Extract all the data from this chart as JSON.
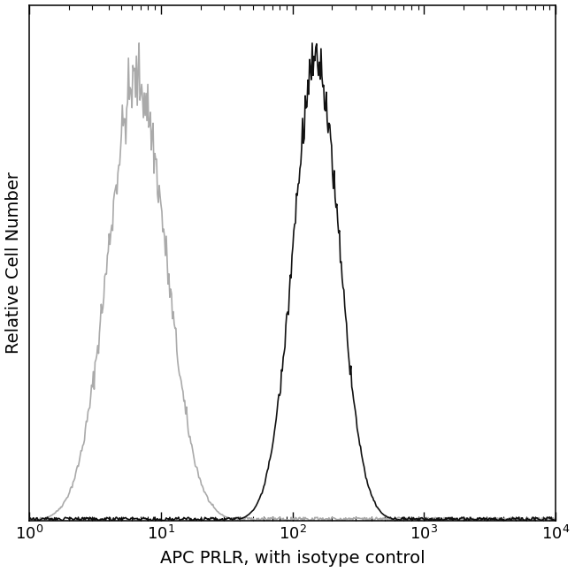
{
  "xlabel": "APC PRLR, with isotype control",
  "ylabel": "Relative Cell Number",
  "xlim_log": [
    1,
    10000
  ],
  "ylim": [
    0,
    1.08
  ],
  "background_color": "#ffffff",
  "isotype_peak_log": 0.82,
  "isotype_sigma_log": 0.22,
  "antibody_peak_log": 2.18,
  "antibody_sigma_log": 0.175,
  "isotype_color": "#aaaaaa",
  "antibody_color": "#111111",
  "xlabel_fontsize": 14,
  "ylabel_fontsize": 14,
  "tick_fontsize": 13,
  "line_width": 1.2,
  "noise_amplitude": 0.04,
  "n_points": 600
}
